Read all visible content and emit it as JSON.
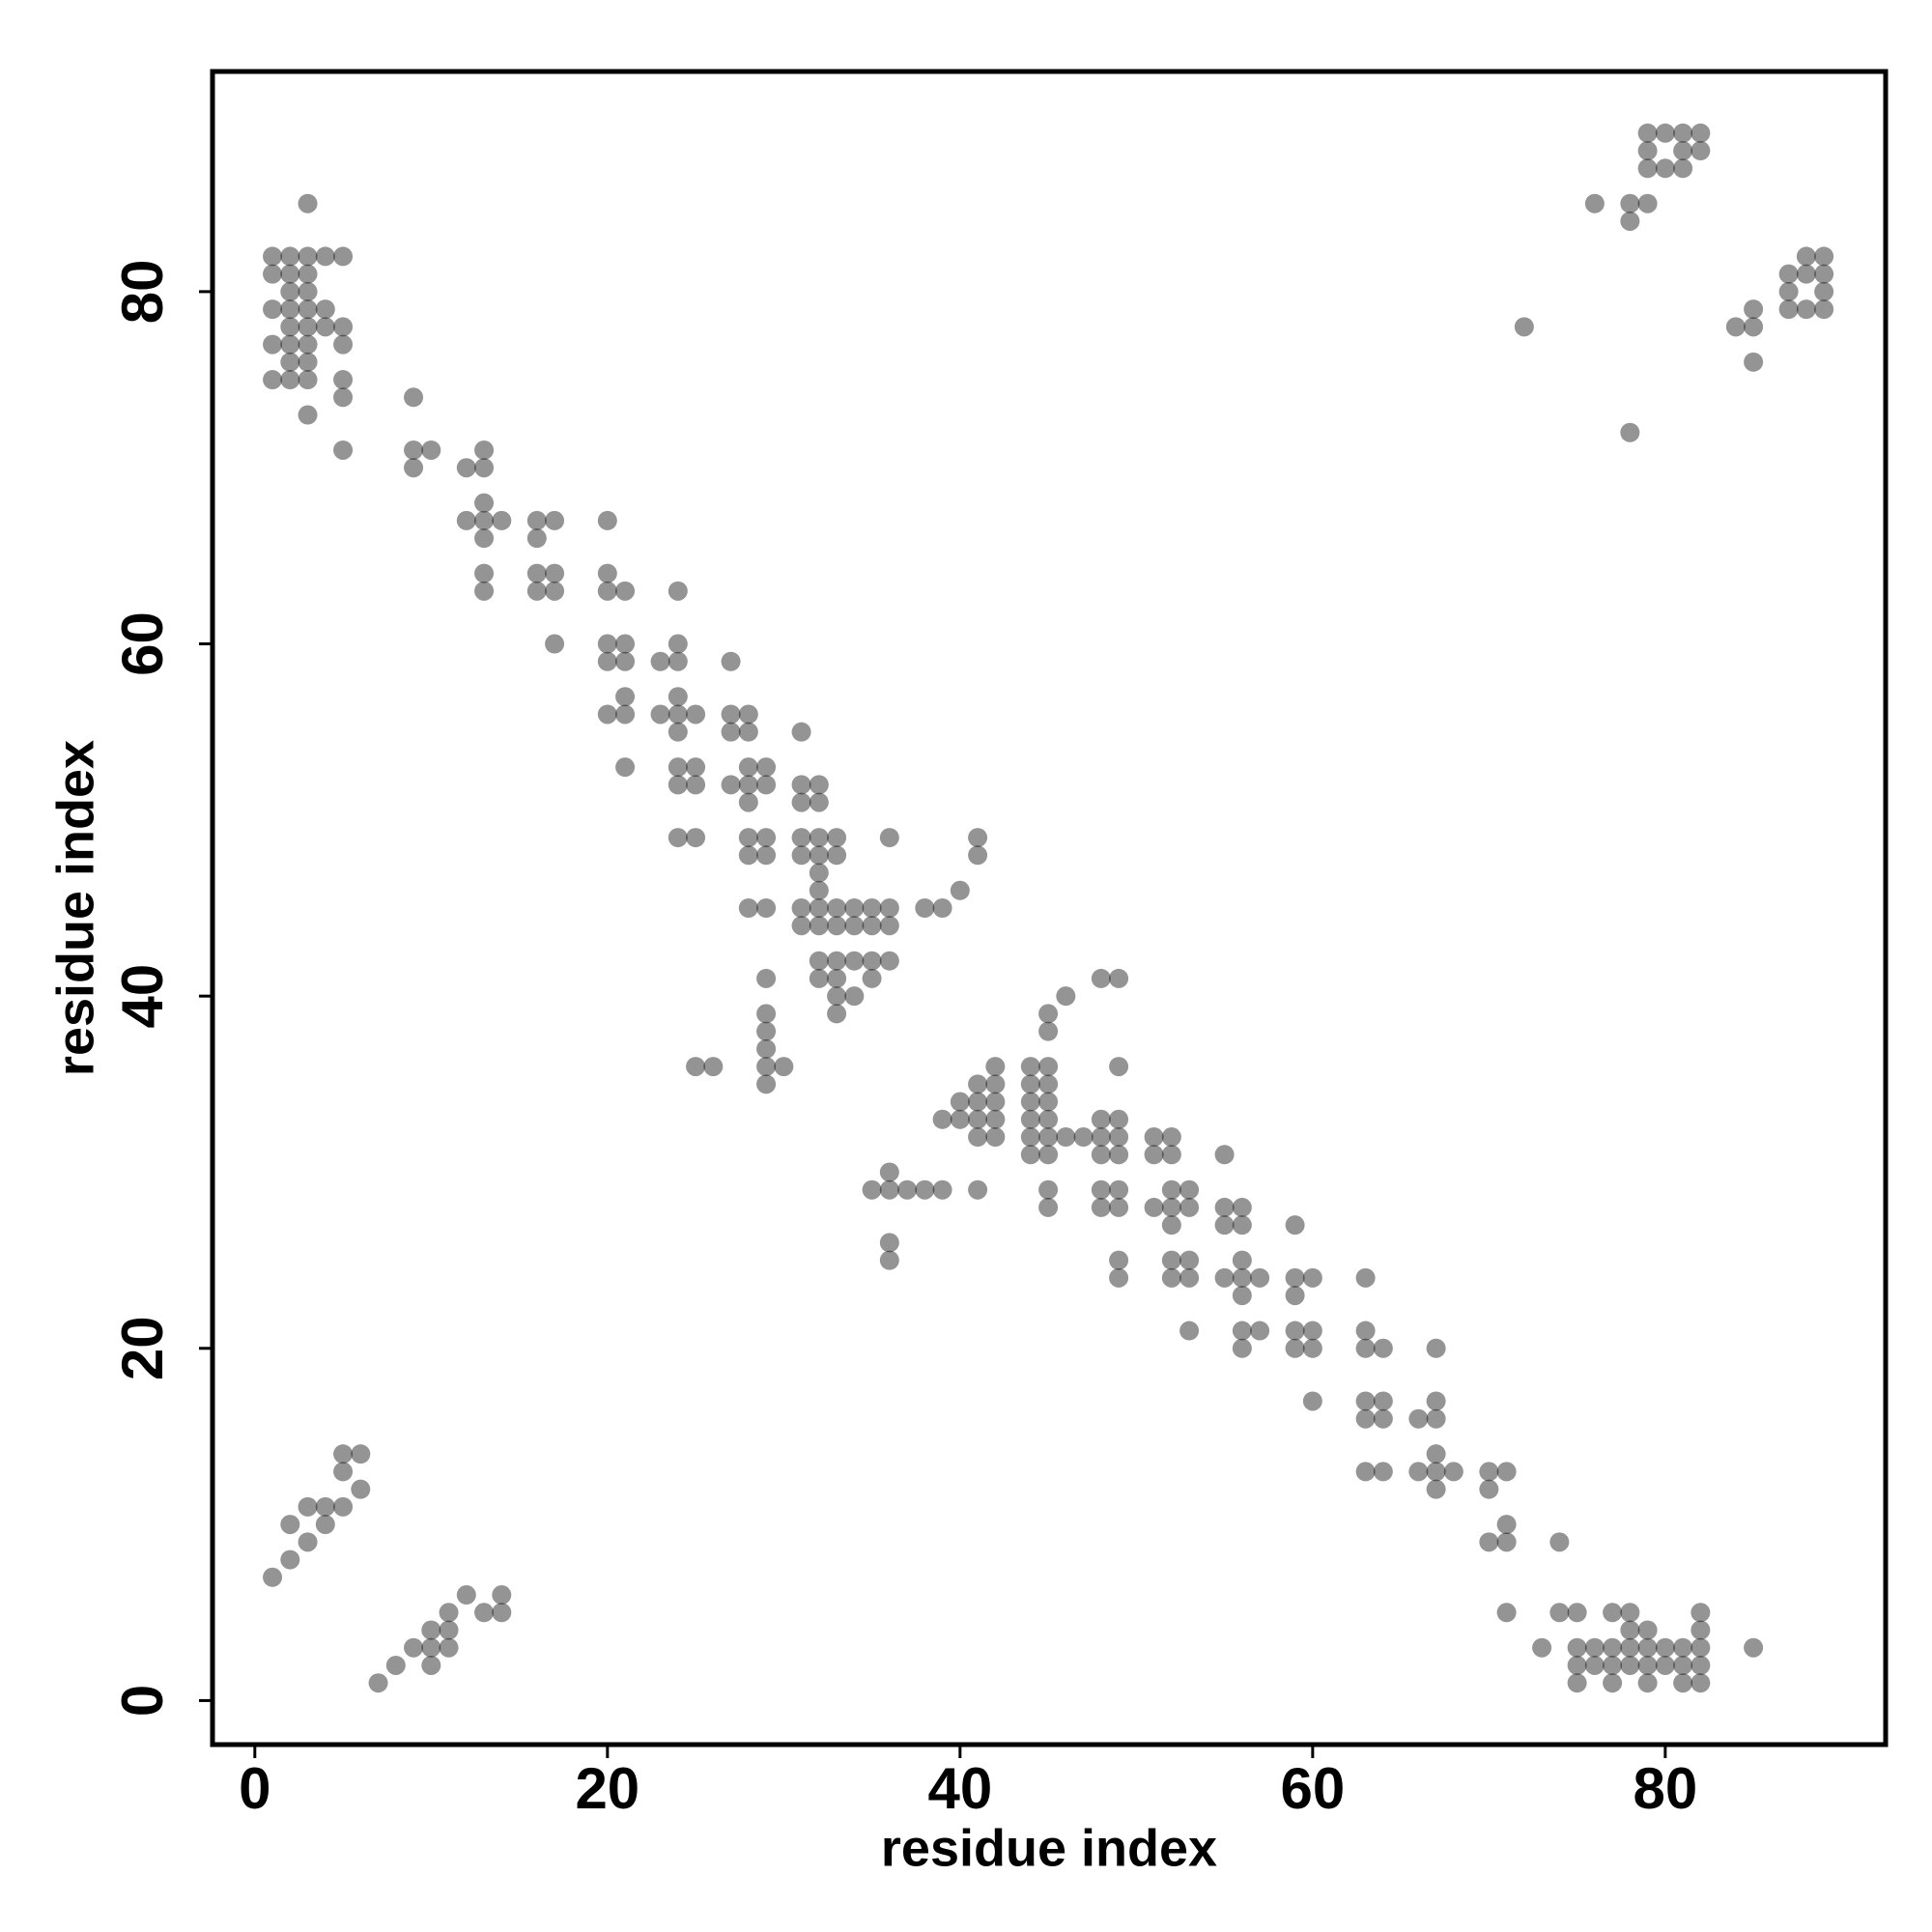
{
  "chart_data": {
    "type": "scatter",
    "x_label": "residue index",
    "y_label": "residue index",
    "xlim": [
      -2.4,
      92.5
    ],
    "ylim": [
      -2.5,
      92.5
    ],
    "xticks": [
      0,
      20,
      40,
      60,
      80
    ],
    "yticks": [
      0,
      20,
      40,
      60,
      80
    ],
    "color": "#000000",
    "alpha": 0.42,
    "grid": false,
    "x": [
      79,
      80,
      81,
      82,
      79,
      81,
      82,
      79,
      80,
      81,
      3,
      76,
      78,
      79,
      78,
      1,
      2,
      3,
      4,
      5,
      88,
      89,
      1,
      2,
      3,
      87,
      88,
      89,
      2,
      3,
      87,
      89,
      1,
      2,
      3,
      4,
      85,
      87,
      88,
      89,
      2,
      3,
      4,
      5,
      72,
      84,
      85,
      1,
      2,
      3,
      5,
      2,
      3,
      85,
      1,
      2,
      3,
      5,
      5,
      9,
      3,
      78,
      5,
      9,
      10,
      13,
      9,
      12,
      13,
      13,
      12,
      13,
      14,
      16,
      17,
      20,
      13,
      16,
      13,
      16,
      17,
      20,
      13,
      16,
      17,
      20,
      21,
      24,
      17,
      20,
      21,
      24,
      20,
      21,
      23,
      24,
      27,
      21,
      24,
      20,
      21,
      23,
      24,
      25,
      27,
      28,
      24,
      27,
      28,
      31,
      21,
      24,
      25,
      28,
      29,
      24,
      25,
      27,
      28,
      29,
      31,
      32,
      28,
      31,
      32,
      24,
      25,
      28,
      29,
      31,
      32,
      33,
      36,
      41,
      28,
      29,
      31,
      32,
      33,
      41,
      32,
      32,
      40,
      28,
      29,
      31,
      32,
      33,
      34,
      35,
      36,
      38,
      39,
      31,
      32,
      33,
      34,
      35,
      36,
      32,
      33,
      34,
      35,
      36,
      29,
      32,
      33,
      35,
      48,
      49,
      33,
      34,
      46,
      29,
      33,
      45,
      29,
      45,
      29,
      25,
      26,
      29,
      30,
      42,
      44,
      45,
      49,
      29,
      41,
      42,
      44,
      45,
      40,
      41,
      42,
      44,
      45,
      39,
      40,
      41,
      42,
      44,
      45,
      48,
      49,
      41,
      42,
      44,
      45,
      46,
      47,
      48,
      49,
      51,
      52,
      44,
      45,
      48,
      49,
      51,
      52,
      55,
      36,
      35,
      36,
      37,
      38,
      39,
      41,
      45,
      48,
      49,
      52,
      53,
      45,
      48,
      49,
      51,
      52,
      53,
      55,
      56,
      52,
      55,
      56,
      59,
      36,
      36,
      49,
      52,
      53,
      56,
      49,
      52,
      53,
      55,
      56,
      57,
      59,
      60,
      63,
      56,
      59,
      53,
      56,
      57,
      59,
      60,
      63,
      56,
      59,
      60,
      63,
      64,
      67,
      60,
      63,
      64,
      67,
      63,
      64,
      66,
      67,
      5,
      6,
      67,
      5,
      63,
      64,
      66,
      67,
      68,
      70,
      71,
      6,
      67,
      70,
      3,
      4,
      5,
      2,
      4,
      71,
      3,
      70,
      71,
      74,
      2,
      1,
      12,
      14,
      11,
      13,
      14,
      71,
      74,
      75,
      77,
      78,
      82,
      10,
      11,
      78,
      79,
      82,
      9,
      10,
      11,
      73,
      75,
      76,
      77,
      78,
      79,
      80,
      81,
      82,
      85,
      8,
      10,
      75,
      76,
      77,
      78,
      79,
      80,
      81,
      82,
      7,
      75,
      77,
      79,
      81,
      82
    ],
    "values": [
      89,
      89,
      89,
      89,
      88,
      88,
      88,
      87,
      87,
      87,
      85,
      85,
      85,
      85,
      84,
      82,
      82,
      82,
      82,
      82,
      82,
      82,
      81,
      81,
      81,
      81,
      81,
      81,
      80,
      80,
      80,
      80,
      79,
      79,
      79,
      79,
      79,
      79,
      79,
      79,
      78,
      78,
      78,
      78,
      78,
      78,
      78,
      77,
      77,
      77,
      77,
      76,
      76,
      76,
      75,
      75,
      75,
      75,
      74,
      74,
      73,
      72,
      71,
      71,
      71,
      71,
      70,
      70,
      70,
      68,
      67,
      67,
      67,
      67,
      67,
      67,
      66,
      66,
      64,
      64,
      64,
      64,
      63,
      63,
      63,
      63,
      63,
      63,
      60,
      60,
      60,
      60,
      59,
      59,
      59,
      59,
      59,
      57,
      57,
      56,
      56,
      56,
      56,
      56,
      56,
      56,
      55,
      55,
      55,
      55,
      53,
      53,
      53,
      53,
      53,
      52,
      52,
      52,
      52,
      52,
      52,
      52,
      51,
      51,
      51,
      49,
      49,
      49,
      49,
      49,
      49,
      49,
      49,
      49,
      48,
      48,
      48,
      48,
      48,
      48,
      47,
      46,
      46,
      45,
      45,
      45,
      45,
      45,
      45,
      45,
      45,
      45,
      45,
      44,
      44,
      44,
      44,
      44,
      44,
      42,
      42,
      42,
      42,
      42,
      41,
      41,
      41,
      41,
      41,
      41,
      40,
      40,
      40,
      39,
      39,
      39,
      38,
      38,
      37,
      36,
      36,
      36,
      36,
      36,
      36,
      36,
      36,
      35,
      35,
      35,
      35,
      35,
      34,
      34,
      34,
      34,
      34,
      33,
      33,
      33,
      33,
      33,
      33,
      33,
      33,
      32,
      32,
      32,
      32,
      32,
      32,
      32,
      32,
      32,
      32,
      31,
      31,
      31,
      31,
      31,
      31,
      31,
      30,
      29,
      29,
      29,
      29,
      29,
      29,
      29,
      29,
      29,
      29,
      29,
      28,
      28,
      28,
      28,
      28,
      28,
      28,
      28,
      27,
      27,
      27,
      27,
      26,
      25,
      25,
      25,
      25,
      25,
      24,
      24,
      24,
      24,
      24,
      24,
      24,
      24,
      24,
      23,
      23,
      21,
      21,
      21,
      21,
      21,
      21,
      20,
      20,
      20,
      20,
      20,
      20,
      17,
      17,
      17,
      17,
      16,
      16,
      16,
      16,
      14,
      14,
      14,
      13,
      13,
      13,
      13,
      13,
      13,
      13,
      13,
      12,
      12,
      12,
      11,
      11,
      11,
      10,
      10,
      10,
      9,
      9,
      9,
      9,
      8,
      7,
      6,
      6,
      5,
      5,
      5,
      5,
      5,
      5,
      5,
      5,
      5,
      4,
      4,
      4,
      4,
      4,
      3,
      3,
      3,
      3,
      3,
      3,
      3,
      3,
      3,
      3,
      3,
      3,
      3,
      2,
      2,
      2,
      2,
      2,
      2,
      2,
      2,
      2,
      2,
      1,
      1,
      1,
      1,
      1,
      1
    ]
  }
}
